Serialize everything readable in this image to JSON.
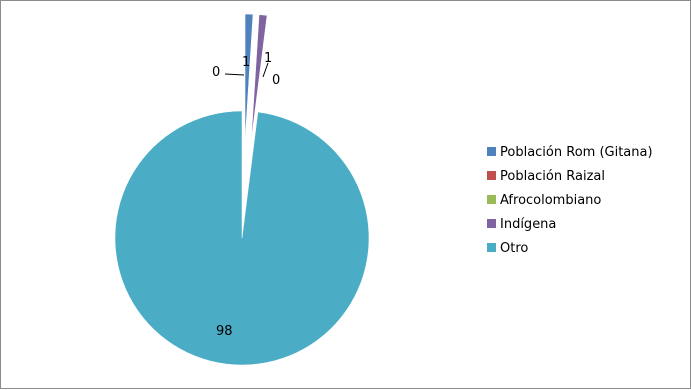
{
  "chart_data": {
    "type": "pie",
    "title": "",
    "start_angle_deg": 0,
    "legend_position": "right",
    "series": [
      {
        "values": [
          1,
          0,
          0,
          1,
          98
        ],
        "data_labels": [
          "1",
          "0",
          "0",
          "1",
          "98"
        ]
      }
    ],
    "categories": [
      "Población Rom (Gitana)",
      "Población Raizal",
      "Afrocolombiano",
      "Indígena",
      "Otro"
    ],
    "colors": [
      "#4F81BD",
      "#C0504D",
      "#9BBB59",
      "#8064A2",
      "#4BACC6"
    ],
    "exploded_slices": [
      0,
      3
    ]
  }
}
